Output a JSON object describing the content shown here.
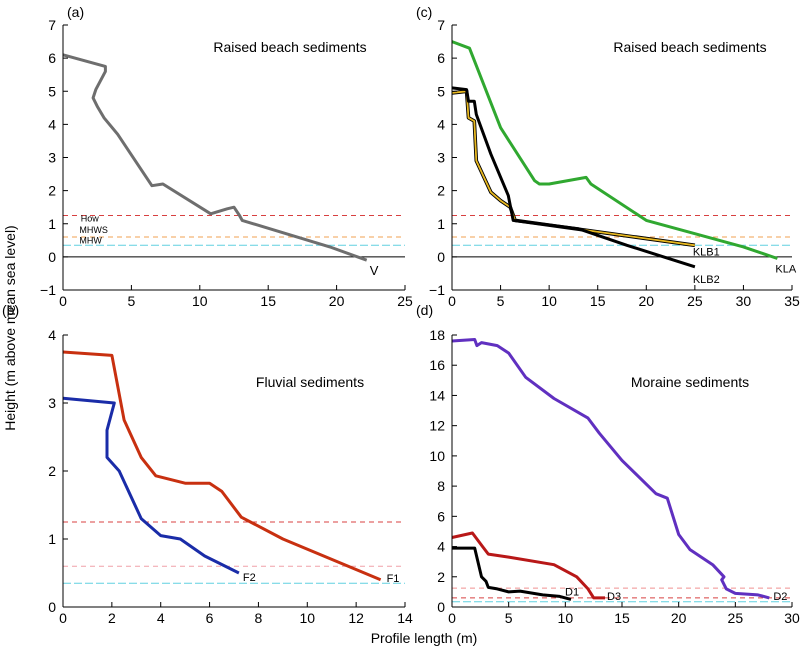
{
  "figure": {
    "ylabel": "Height (m above mean sea level)",
    "xlabel": "Profile length (m)"
  },
  "chart_data": [
    {
      "id": "a",
      "type": "line",
      "panel_label": "(a)",
      "title": "Raised beach sediments",
      "xlim": [
        0,
        25
      ],
      "ylim": [
        -1,
        7
      ],
      "xticks": [
        0,
        5,
        10,
        15,
        20,
        25
      ],
      "yticks": [
        -1,
        0,
        1,
        2,
        3,
        4,
        5,
        6,
        7
      ],
      "ref_lines": [
        {
          "y": 1.25,
          "color": "#d84040",
          "dash": "5,4",
          "label": "How"
        },
        {
          "y": 0.6,
          "color": "#f0a050",
          "dash": "5,4",
          "label": "MHWS"
        },
        {
          "y": 0.35,
          "color": "#60d0e0",
          "dash": "8,3",
          "label": "MHW"
        }
      ],
      "zero_line": true,
      "series": [
        {
          "name": "V",
          "color": "#6e6e6e",
          "end_label": "V",
          "x": [
            0,
            3.1,
            3.1,
            2.4,
            2.2,
            2.5,
            3.0,
            4.0,
            6.5,
            7.3,
            10.8,
            12.0,
            12.5,
            12.9,
            13.1,
            19.5,
            22.2
          ],
          "y": [
            6.1,
            5.75,
            5.6,
            5.05,
            4.8,
            4.55,
            4.2,
            3.7,
            2.15,
            2.2,
            1.3,
            1.45,
            1.5,
            1.25,
            1.1,
            0.3,
            -0.1
          ]
        }
      ]
    },
    {
      "id": "c",
      "type": "line",
      "panel_label": "(c)",
      "title": "Raised beach sediments",
      "xlim": [
        0,
        35
      ],
      "ylim": [
        -1,
        7
      ],
      "xticks": [
        0,
        5,
        10,
        15,
        20,
        25,
        30,
        35
      ],
      "yticks": [
        -1,
        0,
        1,
        2,
        3,
        4,
        5,
        6,
        7
      ],
      "ref_lines": [
        {
          "y": 1.25,
          "color": "#d84040",
          "dash": "5,4"
        },
        {
          "y": 0.6,
          "color": "#f0a050",
          "dash": "5,4"
        },
        {
          "y": 0.35,
          "color": "#60d0e0",
          "dash": "8,3"
        }
      ],
      "zero_line": true,
      "series": [
        {
          "name": "KLA",
          "color": "#30a830",
          "end_label": "KLA",
          "x": [
            0,
            1.8,
            5.0,
            8.5,
            9.0,
            10.0,
            13.8,
            14.3,
            20.0,
            25.0,
            30.0,
            33.5
          ],
          "y": [
            6.5,
            6.3,
            3.9,
            2.3,
            2.2,
            2.2,
            2.4,
            2.2,
            1.1,
            0.7,
            0.3,
            -0.05
          ]
        },
        {
          "name": "KLB1",
          "color": "#e8b820",
          "end_label": "KLB1",
          "x": [
            0,
            1.5,
            1.7,
            2.3,
            2.5,
            4.0,
            5.0,
            6.0,
            6.5,
            25.0
          ],
          "y": [
            4.95,
            5.0,
            4.2,
            4.1,
            2.9,
            1.95,
            1.7,
            1.5,
            1.1,
            0.35
          ]
        },
        {
          "name": "KLB2",
          "color": "#000000",
          "end_label": "KLB2",
          "x": [
            0,
            1.5,
            1.7,
            2.3,
            2.5,
            4.0,
            5.8,
            6.3,
            13.0,
            18.0,
            25.0
          ],
          "y": [
            5.1,
            5.05,
            4.7,
            4.7,
            4.3,
            3.1,
            1.85,
            1.1,
            0.85,
            0.35,
            -0.3
          ]
        }
      ]
    },
    {
      "id": "b",
      "type": "line",
      "panel_label": "(b)",
      "title": "Fluvial sediments",
      "xlim": [
        0,
        14
      ],
      "ylim": [
        0,
        4
      ],
      "xticks": [
        0,
        2,
        4,
        6,
        8,
        10,
        12,
        14
      ],
      "yticks": [
        0,
        1,
        2,
        3,
        4
      ],
      "ref_lines": [
        {
          "y": 1.25,
          "color": "#d84040",
          "dash": "5,4"
        },
        {
          "y": 0.6,
          "color": "#f0a0a8",
          "dash": "5,4"
        },
        {
          "y": 0.35,
          "color": "#60d0e0",
          "dash": "8,3"
        }
      ],
      "zero_line": false,
      "series": [
        {
          "name": "F1",
          "color": "#c83010",
          "end_label": "F1",
          "x": [
            0,
            2.0,
            2.5,
            3.2,
            3.8,
            5.0,
            6.0,
            6.5,
            7.3,
            9.0,
            13.0
          ],
          "y": [
            3.75,
            3.7,
            2.75,
            2.2,
            1.93,
            1.82,
            1.82,
            1.7,
            1.32,
            1.0,
            0.4
          ]
        },
        {
          "name": "F2",
          "color": "#1a2ca8",
          "end_label": "F2",
          "x": [
            0,
            2.1,
            1.8,
            1.8,
            2.3,
            3.2,
            4.0,
            4.8,
            5.8,
            7.2
          ],
          "y": [
            3.07,
            3.0,
            2.6,
            2.2,
            2.0,
            1.3,
            1.05,
            1.0,
            0.75,
            0.5
          ]
        }
      ]
    },
    {
      "id": "d",
      "type": "line",
      "panel_label": "(d)",
      "title": "Moraine sediments",
      "xlim": [
        0,
        30
      ],
      "ylim": [
        0,
        18
      ],
      "xticks": [
        0,
        5,
        10,
        15,
        20,
        25,
        30
      ],
      "yticks": [
        0,
        2,
        4,
        6,
        8,
        10,
        12,
        14,
        16,
        18
      ],
      "ref_lines": [
        {
          "y": 1.25,
          "color": "#f09090",
          "dash": "5,4"
        },
        {
          "y": 0.6,
          "color": "#d84040",
          "dash": "5,4"
        },
        {
          "y": 0.35,
          "color": "#60d0e0",
          "dash": "8,3"
        }
      ],
      "zero_line": false,
      "series": [
        {
          "name": "D2",
          "color": "#6030c0",
          "end_label": "D2",
          "x": [
            0,
            2.0,
            2.2,
            2.6,
            4.0,
            5.0,
            6.5,
            9.0,
            12.0,
            13.0,
            15.0,
            18.0,
            19.0,
            20.0,
            21.0,
            23.0,
            24.0,
            23.8,
            24.2,
            25.0,
            27.0,
            28.0
          ],
          "y": [
            17.6,
            17.7,
            17.3,
            17.5,
            17.3,
            16.8,
            15.2,
            13.8,
            12.5,
            11.5,
            9.7,
            7.5,
            7.2,
            4.8,
            3.8,
            2.8,
            2.0,
            1.8,
            1.2,
            0.9,
            0.8,
            0.6
          ]
        },
        {
          "name": "D3",
          "color": "#b81818",
          "end_label": "D3",
          "x": [
            0,
            1.8,
            2.7,
            3.2,
            5.0,
            9.0,
            11.0,
            12.0,
            12.5,
            13.5
          ],
          "y": [
            4.6,
            4.9,
            4.0,
            3.5,
            3.3,
            2.8,
            2.0,
            1.2,
            0.6,
            0.6
          ]
        },
        {
          "name": "D1",
          "color": "#000000",
          "end_label": "D1",
          "x": [
            0,
            2.0,
            2.6,
            3.0,
            3.2,
            4.0,
            5.0,
            6.0,
            8.0,
            9.5,
            10.5
          ],
          "y": [
            3.9,
            3.9,
            2.0,
            1.7,
            1.3,
            1.2,
            1.0,
            1.05,
            0.8,
            0.7,
            0.5
          ]
        }
      ]
    }
  ]
}
